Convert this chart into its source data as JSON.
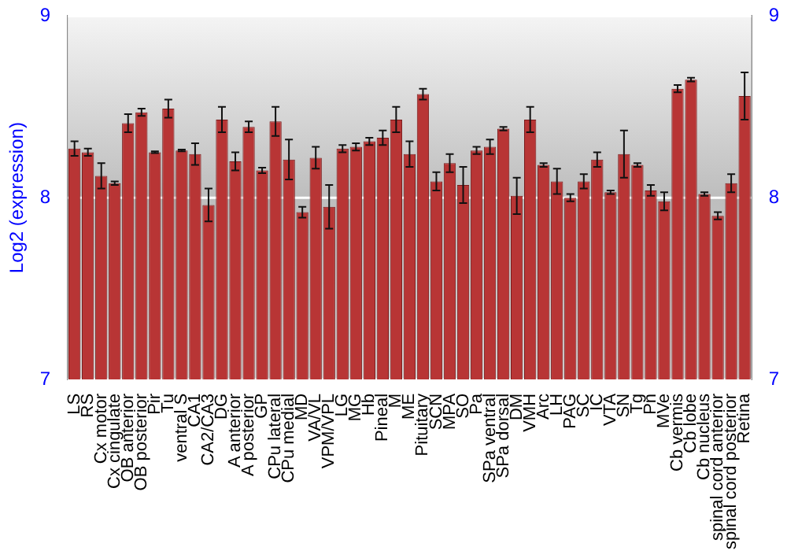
{
  "chart_data": {
    "type": "bar",
    "ylabel": "Log2 (expression)",
    "categories": [
      "LS",
      "RS",
      "Cx motor",
      "Cx cingulate",
      "OB anterior",
      "OB posterior",
      "Pir",
      "Tu",
      "ventral S",
      "CA1",
      "CA2/CA3",
      "DG",
      "A anterior",
      "A posterior",
      "GP",
      "CPu lateral",
      "CPu medial",
      "MD",
      "VA/VL",
      "VPM/VPL",
      "LG",
      "MG",
      "Hb",
      "Pineal",
      "M",
      "ME",
      "Pituitary",
      "SCN",
      "MPA",
      "SO",
      "Pa",
      "SPa ventral",
      "SPa dorsal",
      "DM",
      "VMH",
      "Arc",
      "LH",
      "PAG",
      "SC",
      "IC",
      "VTA",
      "SN",
      "Tg",
      "Pn",
      "MVe",
      "Cb vermis",
      "Cb lobe",
      "Cb nucleus",
      "spinal cord anterior",
      "spinal cord posterior",
      "Retina"
    ],
    "values": [
      8.27,
      8.25,
      8.12,
      8.08,
      8.41,
      8.47,
      8.25,
      8.49,
      8.26,
      8.24,
      7.96,
      8.43,
      8.2,
      8.39,
      8.15,
      8.42,
      8.21,
      7.92,
      8.22,
      7.95,
      8.27,
      8.28,
      8.31,
      8.33,
      8.43,
      8.24,
      8.57,
      8.09,
      8.19,
      8.07,
      8.26,
      8.28,
      8.38,
      8.01,
      8.43,
      8.18,
      8.09,
      8.0,
      8.09,
      8.21,
      8.03,
      8.24,
      8.18,
      8.04,
      7.98,
      8.6,
      8.65,
      8.02,
      7.9,
      8.08,
      8.56
    ],
    "errors": [
      0.04,
      0.02,
      0.07,
      0.01,
      0.05,
      0.02,
      0.005,
      0.05,
      0.005,
      0.06,
      0.09,
      0.07,
      0.05,
      0.03,
      0.015,
      0.08,
      0.11,
      0.03,
      0.06,
      0.12,
      0.02,
      0.02,
      0.02,
      0.04,
      0.07,
      0.07,
      0.03,
      0.05,
      0.05,
      0.1,
      0.02,
      0.04,
      0.01,
      0.1,
      0.07,
      0.01,
      0.07,
      0.02,
      0.04,
      0.04,
      0.01,
      0.13,
      0.01,
      0.03,
      0.05,
      0.02,
      0.01,
      0.01,
      0.02,
      0.05,
      0.13
    ],
    "color": "#b83535",
    "ylim": [
      7,
      9
    ],
    "yticks": [
      7,
      8,
      9
    ],
    "y2lim": [
      7,
      9
    ],
    "y2ticks": [
      7,
      8,
      9
    ],
    "grid": "y"
  }
}
